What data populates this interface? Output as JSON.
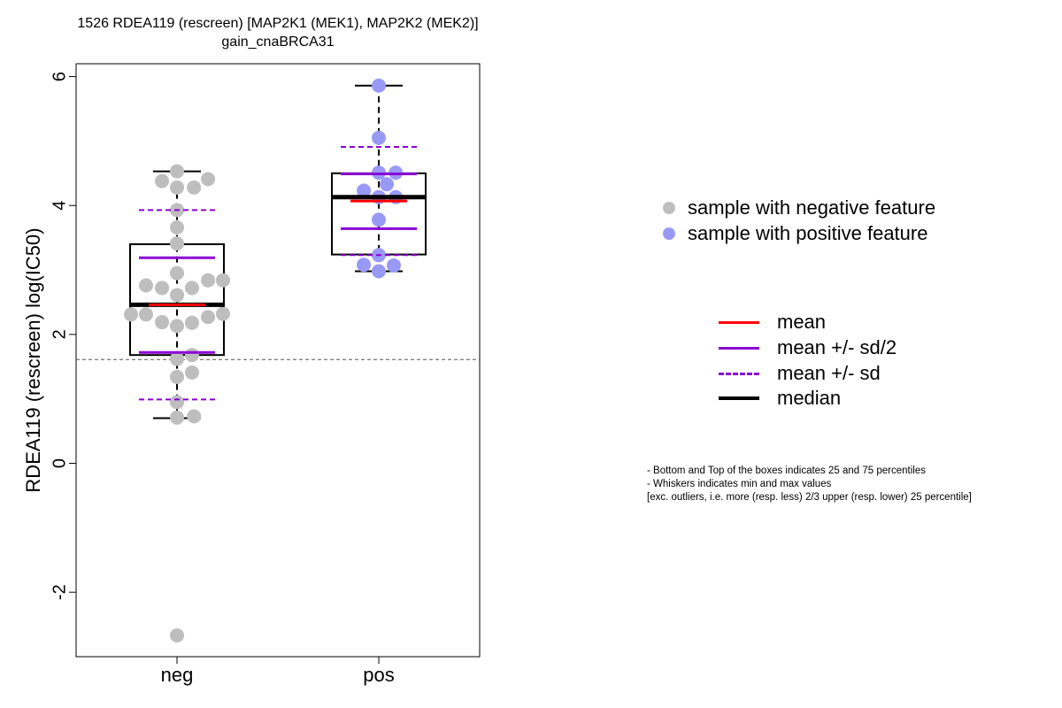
{
  "chart_data": {
    "type": "box",
    "title": "1526 RDEA119 (rescreen) [MAP2K1 (MEK1), MAP2K2 (MEK2)]",
    "subtitle": "gain_cnaBRCA31",
    "xlabel": "",
    "ylabel": "RDEA119 (rescreen) log(IC50)",
    "categories": [
      "neg",
      "pos"
    ],
    "ylim": [
      -3,
      6.2
    ],
    "yticks": [
      -2,
      0,
      2,
      4,
      6
    ],
    "reference_line": 1.61,
    "grid": false,
    "legend_position": "right",
    "colors": {
      "neg": "#bebebe",
      "pos": "#9999f5",
      "mean": "#ff0000",
      "sd": "#8a00d4",
      "median": "#000000"
    },
    "series": [
      {
        "category": "neg",
        "min": 0.7,
        "q1": 1.68,
        "median": 2.46,
        "q3": 3.4,
        "max": 4.53,
        "mean": 2.46,
        "mean_minus_sd2": 1.72,
        "mean_plus_sd2": 3.19,
        "mean_minus_sd": 0.99,
        "mean_plus_sd": 3.93,
        "points": [
          {
            "dx": 0.0,
            "y": 4.53
          },
          {
            "dx": -0.15,
            "y": 4.38
          },
          {
            "dx": 0.0,
            "y": 4.28
          },
          {
            "dx": 0.17,
            "y": 4.28
          },
          {
            "dx": 0.31,
            "y": 4.41
          },
          {
            "dx": 0.0,
            "y": 3.93
          },
          {
            "dx": 0.0,
            "y": 3.66
          },
          {
            "dx": 0.0,
            "y": 3.41
          },
          {
            "dx": 0.0,
            "y": 2.95
          },
          {
            "dx": -0.31,
            "y": 2.76
          },
          {
            "dx": -0.15,
            "y": 2.72
          },
          {
            "dx": 0.0,
            "y": 2.61
          },
          {
            "dx": 0.15,
            "y": 2.72
          },
          {
            "dx": 0.31,
            "y": 2.84
          },
          {
            "dx": 0.46,
            "y": 2.84
          },
          {
            "dx": -0.46,
            "y": 2.31
          },
          {
            "dx": -0.31,
            "y": 2.31
          },
          {
            "dx": -0.15,
            "y": 2.19
          },
          {
            "dx": 0.0,
            "y": 2.13
          },
          {
            "dx": 0.15,
            "y": 2.18
          },
          {
            "dx": 0.31,
            "y": 2.27
          },
          {
            "dx": 0.46,
            "y": 2.32
          },
          {
            "dx": 0.0,
            "y": 1.62
          },
          {
            "dx": 0.15,
            "y": 1.68
          },
          {
            "dx": 0.0,
            "y": 1.34
          },
          {
            "dx": 0.15,
            "y": 1.41
          },
          {
            "dx": 0.0,
            "y": 0.95
          },
          {
            "dx": 0.0,
            "y": 0.71
          },
          {
            "dx": 0.17,
            "y": 0.73
          },
          {
            "dx": 0.0,
            "y": -2.67
          }
        ]
      },
      {
        "category": "pos",
        "min": 2.98,
        "q1": 3.24,
        "median": 4.13,
        "q3": 4.5,
        "max": 5.86,
        "mean": 4.07,
        "mean_minus_sd2": 3.64,
        "mean_plus_sd2": 4.49,
        "mean_minus_sd": 3.23,
        "mean_plus_sd": 4.91,
        "points": [
          {
            "dx": 0.0,
            "y": 5.86
          },
          {
            "dx": 0.0,
            "y": 5.05
          },
          {
            "dx": 0.0,
            "y": 4.51
          },
          {
            "dx": 0.17,
            "y": 4.51
          },
          {
            "dx": 0.08,
            "y": 4.33
          },
          {
            "dx": -0.15,
            "y": 4.23
          },
          {
            "dx": 0.0,
            "y": 4.13
          },
          {
            "dx": 0.17,
            "y": 4.13
          },
          {
            "dx": 0.0,
            "y": 3.78
          },
          {
            "dx": 0.0,
            "y": 3.23
          },
          {
            "dx": -0.15,
            "y": 3.08
          },
          {
            "dx": 0.15,
            "y": 3.07
          },
          {
            "dx": 0.0,
            "y": 2.98
          }
        ]
      }
    ]
  },
  "legend": {
    "points": [
      {
        "label": "sample with negative feature",
        "color": "#bebebe"
      },
      {
        "label": "sample with positive feature",
        "color": "#9999f5"
      }
    ],
    "lines": [
      {
        "label": "mean",
        "color": "#ff0000",
        "style": "solid"
      },
      {
        "label": "mean +/- sd/2",
        "color": "#8a00d4",
        "style": "solid"
      },
      {
        "label": "mean +/- sd",
        "color": "#8a00d4",
        "style": "dashed"
      },
      {
        "label": "median",
        "color": "#000000",
        "style": "thick"
      }
    ]
  },
  "notes": [
    "- Bottom and Top of the boxes indicates 25 and 75 percentiles",
    "- Whiskers indicates min and max values",
    "[exc. outliers, i.e. more (resp. less) 2/3 upper (resp. lower) 25 percentile]"
  ]
}
